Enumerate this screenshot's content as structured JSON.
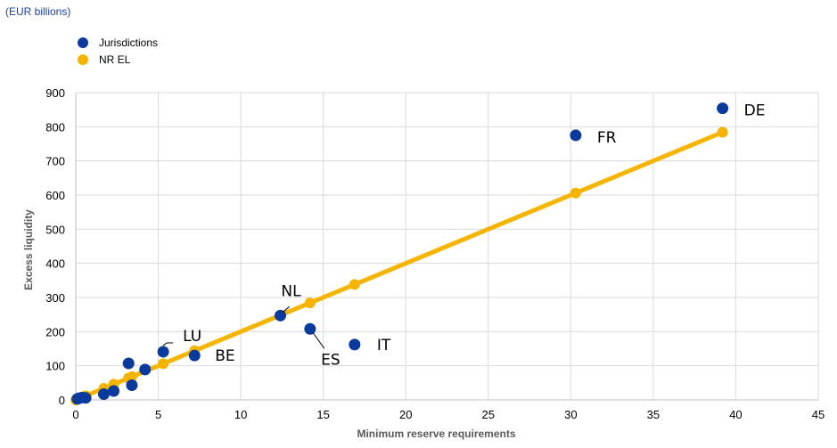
{
  "unit_label": "(EUR billions)",
  "colors": {
    "jurisdictions": "#0a3a9b",
    "nr_el": "#f5b400",
    "grid": "#d9d9d9",
    "leader": "#000000"
  },
  "chart_data": {
    "type": "scatter",
    "xlabel": "Minimum reserve requirements",
    "ylabel": "Excess liquidity",
    "xlim": [
      0,
      45
    ],
    "ylim": [
      0,
      900
    ],
    "xticks": [
      0,
      5,
      10,
      15,
      20,
      25,
      30,
      35,
      40,
      45
    ],
    "yticks": [
      0,
      100,
      200,
      300,
      400,
      500,
      600,
      700,
      800,
      900
    ],
    "grid": true,
    "legend_position": "top-left",
    "series": [
      {
        "name": "Jurisdictions",
        "points": [
          {
            "x": 0.1,
            "y": 3
          },
          {
            "x": 0.2,
            "y": 5
          },
          {
            "x": 0.4,
            "y": 7
          },
          {
            "x": 0.6,
            "y": 6
          },
          {
            "x": 1.7,
            "y": 17
          },
          {
            "x": 2.3,
            "y": 26
          },
          {
            "x": 3.2,
            "y": 107
          },
          {
            "x": 3.4,
            "y": 43
          },
          {
            "x": 4.2,
            "y": 89
          },
          {
            "x": 5.3,
            "y": 141,
            "label": "LU"
          },
          {
            "x": 7.2,
            "y": 130,
            "label": "BE"
          },
          {
            "x": 12.4,
            "y": 247,
            "label": "NL"
          },
          {
            "x": 14.2,
            "y": 208,
            "label": "ES"
          },
          {
            "x": 16.9,
            "y": 162,
            "label": "IT"
          },
          {
            "x": 30.3,
            "y": 775,
            "label": "FR"
          },
          {
            "x": 39.2,
            "y": 854,
            "label": "DE"
          }
        ]
      },
      {
        "name": "NR EL",
        "points": [
          {
            "x": 0,
            "y": 0
          },
          {
            "x": 0.1,
            "y": 2
          },
          {
            "x": 0.2,
            "y": 4
          },
          {
            "x": 0.4,
            "y": 8
          },
          {
            "x": 0.6,
            "y": 12
          },
          {
            "x": 1.7,
            "y": 34
          },
          {
            "x": 2.3,
            "y": 46
          },
          {
            "x": 3.2,
            "y": 64
          },
          {
            "x": 3.4,
            "y": 68
          },
          {
            "x": 5.3,
            "y": 106
          },
          {
            "x": 7.2,
            "y": 144
          },
          {
            "x": 12.4,
            "y": 248
          },
          {
            "x": 14.2,
            "y": 284
          },
          {
            "x": 16.9,
            "y": 338
          },
          {
            "x": 30.3,
            "y": 606
          },
          {
            "x": 39.2,
            "y": 784
          }
        ]
      }
    ]
  }
}
